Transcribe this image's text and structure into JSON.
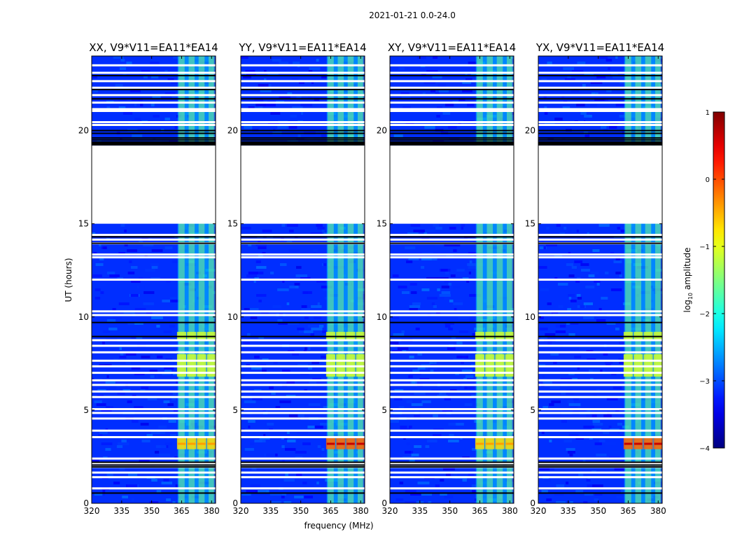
{
  "suptitle": "2021-01-21 0.0-24.0",
  "chart_data": {
    "type": "heatmap",
    "ylabel": "UT (hours)",
    "xlabel": "frequency (MHz)",
    "xlim": [
      320,
      382
    ],
    "ylim": [
      0,
      24
    ],
    "xticks": [
      320,
      335,
      350,
      365,
      380
    ],
    "yticks": [
      0,
      5,
      10,
      15,
      20
    ],
    "panels": [
      {
        "title": "XX, V9*V11=EA11*EA14"
      },
      {
        "title": "YY, V9*V11=EA11*EA14"
      },
      {
        "title": "XY, V9*V11=EA11*EA14"
      },
      {
        "title": "YX, V9*V11=EA11*EA14"
      }
    ],
    "colorbar": {
      "label": "log10 amplitude",
      "label_prefix": "log",
      "label_sub": "10",
      "label_suffix": " amplitude",
      "range": [
        -4,
        1
      ],
      "ticks": [
        "1",
        "0",
        "−1",
        "−2",
        "−3",
        "−4"
      ],
      "tick_values": [
        1,
        0,
        -1,
        -2,
        -3,
        -4
      ]
    },
    "features": {
      "data_gap_hours": [
        15.0,
        19.2
      ],
      "rfi_band_mhz": [
        363,
        381
      ],
      "rfi_channels_mhz": [
        365,
        370,
        375,
        380
      ],
      "strong_rfi_hours": [
        [
          2.9,
          3.6
        ],
        [
          6.8,
          8.0
        ],
        [
          8.7,
          9.2
        ]
      ],
      "white_gap_hours": [
        0.8,
        1.4,
        1.65,
        1.95,
        2.15,
        2.4,
        3.55,
        3.9,
        4.55,
        4.85,
        5.05,
        5.7,
        6.0,
        6.35,
        6.6,
        7.0,
        7.35,
        7.65,
        8.1,
        8.45,
        8.75,
        10.1,
        10.3,
        12.0,
        13.2,
        13.35,
        13.95,
        14.15,
        14.4,
        20.3,
        20.45,
        21.05,
        21.15,
        21.5,
        21.9,
        22.3,
        22.65,
        23.1,
        23.5
      ],
      "black_line_hours": [
        0.55,
        1.95,
        2.05,
        2.2,
        8.95,
        9.7,
        13.95,
        14.3,
        19.5,
        19.6,
        19.85,
        20.0,
        21.7,
        22.2,
        22.95
      ]
    }
  }
}
